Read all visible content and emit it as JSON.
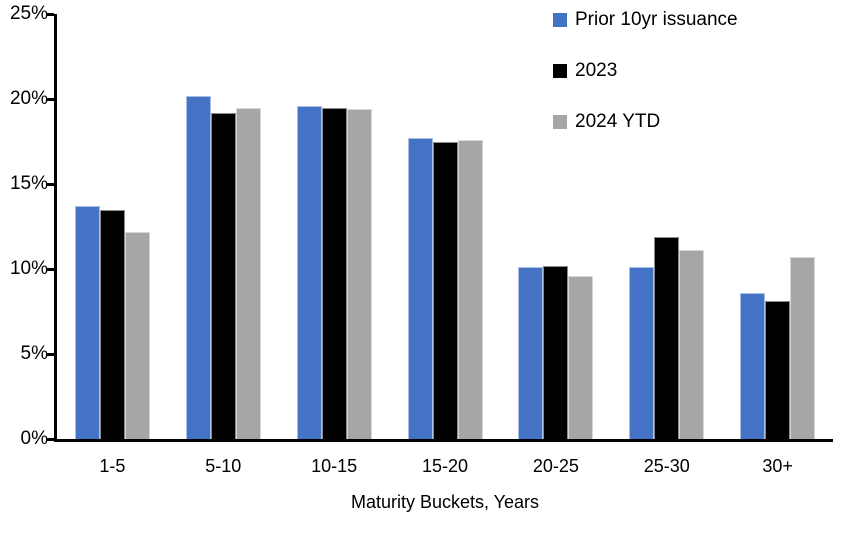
{
  "chart_data": {
    "type": "bar",
    "title": "",
    "xlabel": "Maturity Buckets, Years",
    "ylabel": "",
    "categories": [
      "1-5",
      "5-10",
      "10-15",
      "15-20",
      "20-25",
      "25-30",
      "30+"
    ],
    "series": [
      {
        "name": "Prior 10yr issuance",
        "color": "#4472C4",
        "values": [
          13.7,
          20.2,
          19.6,
          17.7,
          10.1,
          10.1,
          8.6
        ]
      },
      {
        "name": "2023",
        "color": "#000000",
        "values": [
          13.5,
          19.2,
          19.45,
          17.5,
          10.2,
          11.9,
          8.1
        ]
      },
      {
        "name": "2024 YTD",
        "color": "#A6A6A6",
        "values": [
          12.2,
          19.5,
          19.4,
          17.6,
          9.6,
          11.1,
          10.7
        ]
      }
    ],
    "ylim": [
      0,
      25
    ],
    "ytick_step": 5,
    "ytick_suffix": "%",
    "ytick_labels": [
      "0%",
      "5%",
      "10%",
      "15%",
      "20%",
      "25%"
    ],
    "legend_position": "top-right",
    "grid": false,
    "background_color": "#FFFFFF",
    "axis_color": "#000000"
  }
}
